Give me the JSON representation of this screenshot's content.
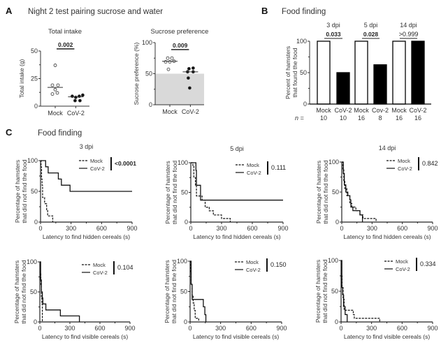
{
  "panels": {
    "A": {
      "letter": "A",
      "title": "Night 2 test pairing sucrose and water"
    },
    "B": {
      "letter": "B",
      "title": "Food finding"
    },
    "C": {
      "letter": "C",
      "title": "Food finding"
    }
  },
  "chart_data": [
    {
      "id": "total-intake",
      "type": "scatter",
      "title": "Total intake",
      "ylabel": "Total intake (g)",
      "xlabel": "",
      "categories": [
        "Mock",
        "CoV-2"
      ],
      "ylim": [
        0,
        50
      ],
      "yticks": [
        "0",
        "25",
        "50"
      ],
      "series": [
        {
          "name": "Mock",
          "fill": "open",
          "values": [
            37,
            19,
            19,
            15,
            11,
            12
          ],
          "median": 17
        },
        {
          "name": "CoV-2",
          "fill": "filled",
          "values": [
            9,
            8,
            9,
            10,
            5,
            5
          ],
          "median": 8.5
        }
      ],
      "pvalue": "0.002"
    },
    {
      "id": "sucrose-preference",
      "type": "scatter",
      "title": "Sucrose preference",
      "ylabel": "Sucrose preference (%)",
      "xlabel": "",
      "categories": [
        "Mock",
        "CoV-2"
      ],
      "ylim": [
        0,
        100
      ],
      "yticks": [
        "0",
        "50",
        "100"
      ],
      "shaded_below": 50,
      "series": [
        {
          "name": "Mock",
          "fill": "open",
          "values": [
            75,
            75,
            69,
            69,
            70,
            57
          ],
          "median": 70
        },
        {
          "name": "CoV-2",
          "fill": "filled",
          "values": [
            58,
            59,
            53,
            53,
            43,
            27
          ],
          "median": 53
        }
      ],
      "pvalue": "0.009"
    },
    {
      "id": "food-finding-bars",
      "type": "bar",
      "title": "",
      "ylabel": "Percent of hamsters that found the food",
      "ylabel_lines": [
        "Percent of hamsters",
        "that found the food"
      ],
      "ylim": [
        0,
        100
      ],
      "yticks": [
        "0",
        "50",
        "100"
      ],
      "categories": [
        "Mock",
        "CoV-2",
        "Mock",
        "Cov-2",
        "Mock",
        "CoV-2"
      ],
      "values": [
        100,
        50,
        100,
        62.5,
        100,
        100
      ],
      "fills": [
        "open",
        "filled",
        "open",
        "filled",
        "open",
        "filled"
      ],
      "n_label": "n =",
      "n": [
        "10",
        "10",
        "16",
        "8",
        "16",
        "16"
      ],
      "groups": [
        {
          "label": "3 dpi",
          "pvalue": "0.033",
          "bold": true
        },
        {
          "label": "5 dpi",
          "pvalue": "0.028",
          "bold": true
        },
        {
          "label": "14 dpi",
          "pvalue": ">0.999",
          "bold": false
        }
      ]
    },
    {
      "id": "km-3dpi-hidden",
      "type": "line",
      "subtitle": "3 dpi",
      "xlabel": "Latency to find hidden cereals (s)",
      "ylabel_lines": [
        "Percentage of hamsters",
        "that did not find the food"
      ],
      "xlim": [
        0,
        900
      ],
      "ylim": [
        0,
        100
      ],
      "xticks": [
        "0",
        "300",
        "600",
        "900"
      ],
      "yticks": [
        "0",
        "50",
        "100"
      ],
      "pvalue": "<0.0001",
      "pbold": true,
      "series": [
        {
          "name": "Mock",
          "style": "dashed",
          "steps": [
            [
              0,
              100
            ],
            [
              5,
              90
            ],
            [
              10,
              70
            ],
            [
              15,
              60
            ],
            [
              20,
              40
            ],
            [
              30,
              40
            ],
            [
              40,
              30
            ],
            [
              60,
              20
            ],
            [
              70,
              10
            ],
            [
              120,
              0
            ]
          ]
        },
        {
          "name": "CoV-2",
          "style": "solid",
          "steps": [
            [
              0,
              100
            ],
            [
              50,
              90
            ],
            [
              75,
              80
            ],
            [
              175,
              70
            ],
            [
              205,
              60
            ],
            [
              290,
              50
            ],
            [
              900,
              50
            ]
          ]
        }
      ]
    },
    {
      "id": "km-5dpi-hidden",
      "type": "line",
      "subtitle": "5 dpi",
      "xlabel": "Latency to find hidden cereals (s)",
      "ylabel_lines": [
        "Percentage of hamsters",
        "that did not find the food"
      ],
      "xlim": [
        0,
        900
      ],
      "ylim": [
        0,
        100
      ],
      "xticks": [
        "0",
        "300",
        "600",
        "900"
      ],
      "yticks": [
        "0",
        "50",
        "100"
      ],
      "pvalue": "0.111",
      "pbold": false,
      "series": [
        {
          "name": "Mock",
          "style": "dashed",
          "steps": [
            [
              0,
              100
            ],
            [
              20,
              94
            ],
            [
              30,
              75
            ],
            [
              45,
              62
            ],
            [
              55,
              44
            ],
            [
              100,
              44
            ],
            [
              110,
              37
            ],
            [
              140,
              25
            ],
            [
              180,
              19
            ],
            [
              220,
              12
            ],
            [
              300,
              6
            ],
            [
              385,
              0
            ]
          ]
        },
        {
          "name": "CoV-2",
          "style": "solid",
          "steps": [
            [
              0,
              100
            ],
            [
              50,
              87
            ],
            [
              55,
              62
            ],
            [
              85,
              62
            ],
            [
              95,
              37
            ],
            [
              900,
              37
            ]
          ]
        }
      ]
    },
    {
      "id": "km-14dpi-hidden",
      "type": "line",
      "subtitle": "14 dpi",
      "xlabel": "Latency to find hidden cereals (s)",
      "ylabel_lines": [
        "Percentage of hamsters",
        "that did not find the food"
      ],
      "xlim": [
        0,
        900
      ],
      "ylim": [
        0,
        100
      ],
      "xticks": [
        "0",
        "300",
        "600",
        "900"
      ],
      "yticks": [
        "0",
        "50",
        "100"
      ],
      "pvalue": "0.842",
      "pbold": false,
      "series": [
        {
          "name": "Mock",
          "style": "dashed",
          "steps": [
            [
              0,
              100
            ],
            [
              10,
              87
            ],
            [
              20,
              69
            ],
            [
              30,
              56
            ],
            [
              50,
              44
            ],
            [
              80,
              31
            ],
            [
              100,
              25
            ],
            [
              120,
              25
            ],
            [
              140,
              19
            ],
            [
              180,
              12
            ],
            [
              210,
              6
            ],
            [
              340,
              0
            ]
          ]
        },
        {
          "name": "CoV-2",
          "style": "solid",
          "steps": [
            [
              0,
              100
            ],
            [
              15,
              81
            ],
            [
              25,
              62
            ],
            [
              40,
              50
            ],
            [
              60,
              44
            ],
            [
              80,
              37
            ],
            [
              90,
              25
            ],
            [
              110,
              19
            ],
            [
              180,
              12
            ],
            [
              205,
              0
            ]
          ]
        }
      ]
    },
    {
      "id": "km-3dpi-visible",
      "type": "line",
      "subtitle": "",
      "xlabel": "Latency to find visible cereals (s)",
      "ylabel_lines": [
        "Percentage of hamsters",
        "that did not find the food"
      ],
      "xlim": [
        0,
        900
      ],
      "ylim": [
        0,
        100
      ],
      "xticks": [
        "0",
        "300",
        "600",
        "900"
      ],
      "yticks": [
        "0",
        "50",
        "100"
      ],
      "pvalue": "0.104",
      "pbold": false,
      "series": [
        {
          "name": "Mock",
          "style": "dashed",
          "steps": [
            [
              0,
              100
            ],
            [
              5,
              80
            ],
            [
              10,
              60
            ],
            [
              15,
              40
            ],
            [
              20,
              30
            ],
            [
              25,
              0
            ]
          ]
        },
        {
          "name": "CoV-2",
          "style": "solid",
          "steps": [
            [
              0,
              100
            ],
            [
              8,
              70
            ],
            [
              15,
              50
            ],
            [
              25,
              40
            ],
            [
              30,
              30
            ],
            [
              60,
              20
            ],
            [
              205,
              10
            ],
            [
              395,
              0
            ]
          ]
        }
      ]
    },
    {
      "id": "km-5dpi-visible",
      "type": "line",
      "subtitle": "",
      "xlabel": "Latency to find visible cereals (s)",
      "ylabel_lines": [
        "Percentage of hamsters",
        "that did not find the food"
      ],
      "xlim": [
        0,
        900
      ],
      "ylim": [
        0,
        100
      ],
      "xticks": [
        "0",
        "300",
        "600",
        "900"
      ],
      "yticks": [
        "0",
        "50",
        "100"
      ],
      "pvalue": "0.150",
      "pbold": false,
      "series": [
        {
          "name": "Mock",
          "style": "dashed",
          "steps": [
            [
              0,
              100
            ],
            [
              5,
              81
            ],
            [
              10,
              62
            ],
            [
              20,
              44
            ],
            [
              30,
              31
            ],
            [
              40,
              19
            ],
            [
              50,
              6
            ],
            [
              85,
              0
            ]
          ]
        },
        {
          "name": "CoV-2",
          "style": "solid",
          "steps": [
            [
              0,
              100
            ],
            [
              10,
              62
            ],
            [
              20,
              37
            ],
            [
              120,
              37
            ],
            [
              130,
              25
            ],
            [
              145,
              12
            ],
            [
              155,
              0
            ]
          ]
        }
      ]
    },
    {
      "id": "km-14dpi-visible",
      "type": "line",
      "subtitle": "",
      "xlabel": "Latency to find visible cereals (s)",
      "ylabel_lines": [
        "Percentage of hamsters",
        "that did not find the food"
      ],
      "xlim": [
        0,
        900
      ],
      "ylim": [
        0,
        100
      ],
      "xticks": [
        "0",
        "300",
        "600",
        "900"
      ],
      "yticks": [
        "0",
        "50",
        "100"
      ],
      "pvalue": "0.334",
      "pbold": false,
      "series": [
        {
          "name": "Mock",
          "style": "dashed",
          "steps": [
            [
              0,
              100
            ],
            [
              5,
              75
            ],
            [
              10,
              56
            ],
            [
              20,
              37
            ],
            [
              30,
              19
            ],
            [
              100,
              19
            ],
            [
              120,
              12
            ],
            [
              130,
              6
            ],
            [
              380,
              0
            ]
          ]
        },
        {
          "name": "CoV-2",
          "style": "solid",
          "steps": [
            [
              0,
              100
            ],
            [
              8,
              56
            ],
            [
              15,
              44
            ],
            [
              25,
              25
            ],
            [
              40,
              12
            ],
            [
              60,
              0
            ]
          ]
        }
      ]
    }
  ]
}
